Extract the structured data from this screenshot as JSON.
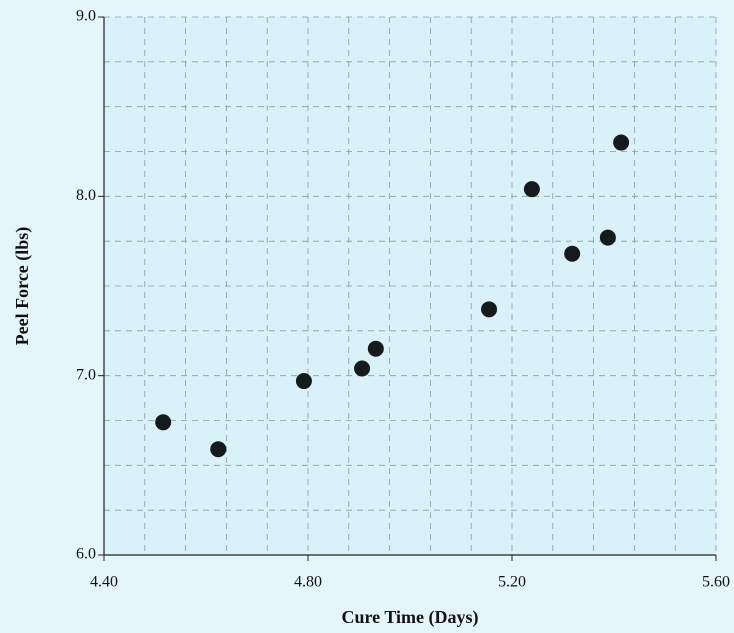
{
  "chart_data": {
    "type": "scatter",
    "x_label": "Cure Time (Days)",
    "y_label": "Peel Force (lbs)",
    "x": [
      4.516,
      4.624,
      4.792,
      4.906,
      4.933,
      5.155,
      5.239,
      5.318,
      5.388,
      5.414
    ],
    "series": [
      {
        "color": "#151a1c",
        "values": [
          6.74,
          6.59,
          6.97,
          7.04,
          7.15,
          7.37,
          8.04,
          7.68,
          7.77,
          8.3
        ]
      }
    ],
    "xlim": [
      4.4,
      5.6
    ],
    "ylim": [
      6.0,
      9.0
    ],
    "xticks": [
      {
        "value": 4.4,
        "label": "4.40"
      },
      {
        "value": 4.8,
        "label": "4.80"
      },
      {
        "value": 5.2,
        "label": "5.20"
      },
      {
        "value": 5.6,
        "label": "5.60"
      }
    ],
    "yticks": [
      {
        "value": 6.0,
        "label": "6.0"
      },
      {
        "value": 7.0,
        "label": "7.0"
      },
      {
        "value": 8.0,
        "label": "8.0"
      },
      {
        "value": 9.0,
        "label": "9.0"
      }
    ],
    "x_minor_ticks": [
      4.48,
      4.56,
      4.64,
      4.72,
      4.88,
      4.96,
      5.04,
      5.12,
      5.28,
      5.36,
      5.44,
      5.52
    ],
    "y_minor_ticks": [
      6.25,
      6.5,
      6.75,
      7.25,
      7.5,
      7.75,
      8.25,
      8.5,
      8.75
    ],
    "grid": true
  }
}
